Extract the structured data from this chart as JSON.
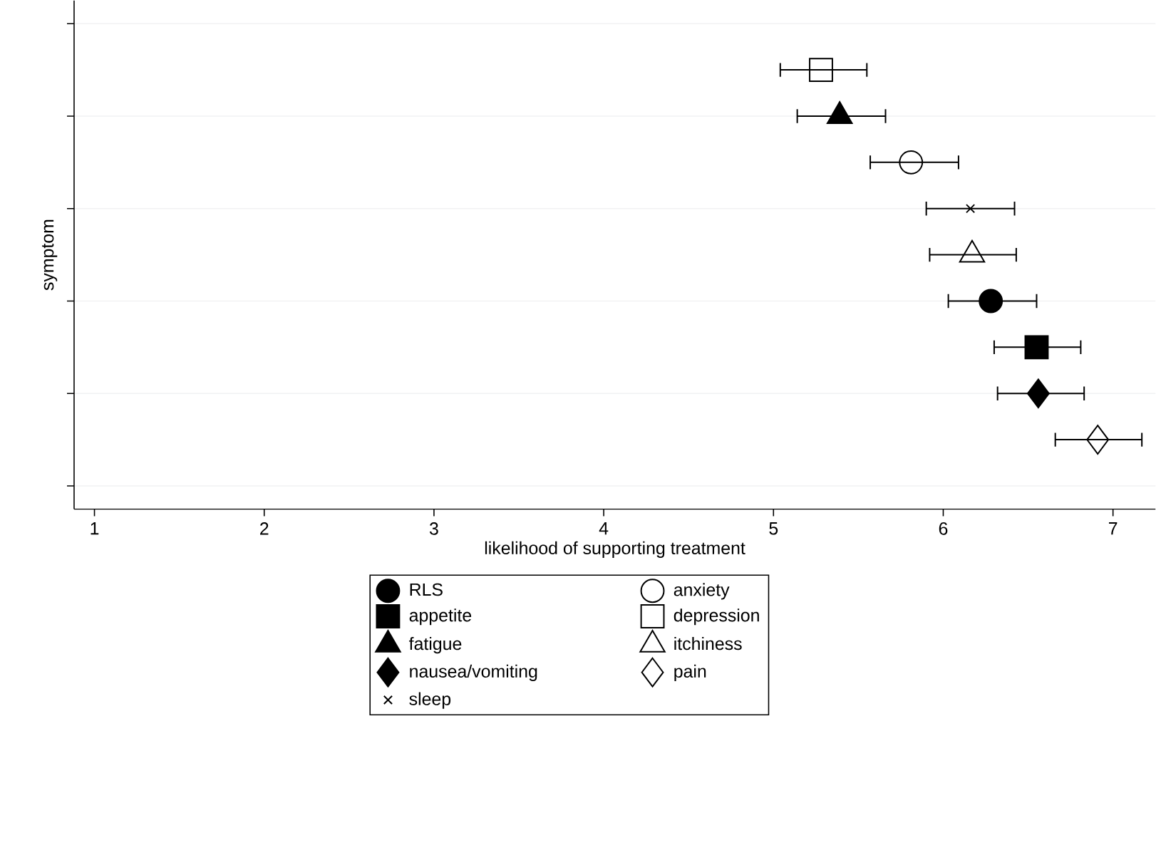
{
  "chart_data": {
    "type": "scatter",
    "orientation": "horizontal",
    "xlabel": "likelihood of supporting treatment",
    "ylabel": "symptom",
    "categories": [
      null,
      null,
      null,
      null,
      null,
      null,
      null,
      null,
      null,
      null,
      null
    ],
    "xlim": [
      0.88,
      7.25
    ],
    "xticks": [
      1,
      2,
      3,
      4,
      5,
      6,
      7
    ],
    "grid": "y",
    "legend": "bottom",
    "series": [
      {
        "name": "RLS",
        "color": "#000000",
        "marker": "circle",
        "values": [
          null,
          null,
          null,
          null,
          null,
          null,
          6.28,
          null,
          null,
          null,
          null
        ],
        "errors": [
          null,
          null,
          null,
          null,
          null,
          null,
          [
            6.03,
            6.55
          ],
          null,
          null,
          null,
          null
        ]
      },
      {
        "name": "anxiety",
        "color": "#000000",
        "marker": "circle",
        "values": [
          null,
          null,
          null,
          5.81,
          null,
          null,
          null,
          null,
          null,
          null,
          null
        ],
        "errors": [
          null,
          null,
          null,
          [
            5.57,
            6.09
          ],
          null,
          null,
          null,
          null,
          null,
          null,
          null
        ]
      },
      {
        "name": "appetite",
        "color": "#000000",
        "marker": "square",
        "values": [
          null,
          null,
          null,
          null,
          null,
          null,
          null,
          6.55,
          null,
          null,
          null
        ],
        "errors": [
          null,
          null,
          null,
          null,
          null,
          null,
          null,
          [
            6.3,
            6.81
          ],
          null,
          null,
          null
        ]
      },
      {
        "name": "depression",
        "color": "#000000",
        "marker": "square",
        "values": [
          null,
          5.28,
          null,
          null,
          null,
          null,
          null,
          null,
          null,
          null,
          null
        ],
        "errors": [
          null,
          [
            5.04,
            5.55
          ],
          null,
          null,
          null,
          null,
          null,
          null,
          null,
          null,
          null
        ]
      },
      {
        "name": "fatigue",
        "color": "#000000",
        "marker": "triangle",
        "values": [
          null,
          null,
          5.39,
          null,
          null,
          null,
          null,
          null,
          null,
          null,
          null
        ],
        "errors": [
          null,
          null,
          [
            5.14,
            5.66
          ],
          null,
          null,
          null,
          null,
          null,
          null,
          null,
          null
        ]
      },
      {
        "name": "itchiness",
        "color": "#000000",
        "marker": "triangle",
        "values": [
          null,
          null,
          null,
          null,
          null,
          6.17,
          null,
          null,
          null,
          null,
          null
        ],
        "errors": [
          null,
          null,
          null,
          null,
          null,
          [
            5.92,
            6.43
          ],
          null,
          null,
          null,
          null,
          null
        ]
      },
      {
        "name": "nausea/vomiting",
        "color": "#000000",
        "marker": "diamond",
        "values": [
          null,
          null,
          null,
          null,
          null,
          null,
          null,
          null,
          6.56,
          null,
          null
        ],
        "errors": [
          null,
          null,
          null,
          null,
          null,
          null,
          null,
          null,
          [
            6.32,
            6.83
          ],
          null,
          null
        ]
      },
      {
        "name": "pain",
        "color": "#000000",
        "marker": "diamond",
        "values": [
          null,
          null,
          null,
          null,
          null,
          null,
          null,
          null,
          null,
          6.91,
          null
        ],
        "errors": [
          null,
          null,
          null,
          null,
          null,
          null,
          null,
          null,
          null,
          [
            6.66,
            7.17
          ],
          null
        ]
      },
      {
        "name": "sleep",
        "color": "#000000",
        "marker": "cross",
        "values": [
          null,
          null,
          null,
          null,
          6.16,
          null,
          null,
          null,
          null,
          null,
          null
        ],
        "errors": [
          null,
          null,
          null,
          null,
          [
            5.9,
            6.42
          ],
          null,
          null,
          null,
          null,
          null,
          null
        ]
      }
    ]
  }
}
